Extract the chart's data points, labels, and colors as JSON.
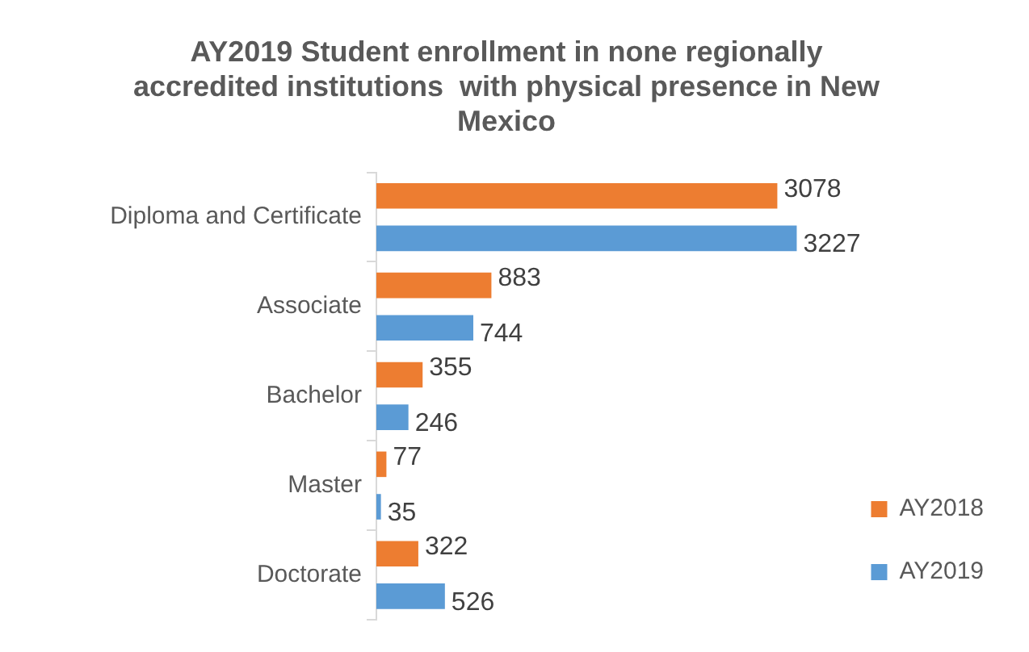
{
  "chart_data": {
    "type": "bar",
    "orientation": "horizontal",
    "title": "AY2019 Student enrollment in none regionally accredited institutions  with physical presence in New Mexico",
    "categories": [
      "Diploma and Certificate",
      "Associate",
      "Bachelor",
      "Master",
      "Doctorate"
    ],
    "series": [
      {
        "name": "AY2018",
        "color": "#ed7d31",
        "values": [
          3078,
          883,
          355,
          77,
          322
        ]
      },
      {
        "name": "AY2019",
        "color": "#5b9bd5",
        "values": [
          3227,
          744,
          246,
          35,
          526
        ]
      }
    ],
    "data_labels": true,
    "grid": false,
    "legend": "right"
  }
}
